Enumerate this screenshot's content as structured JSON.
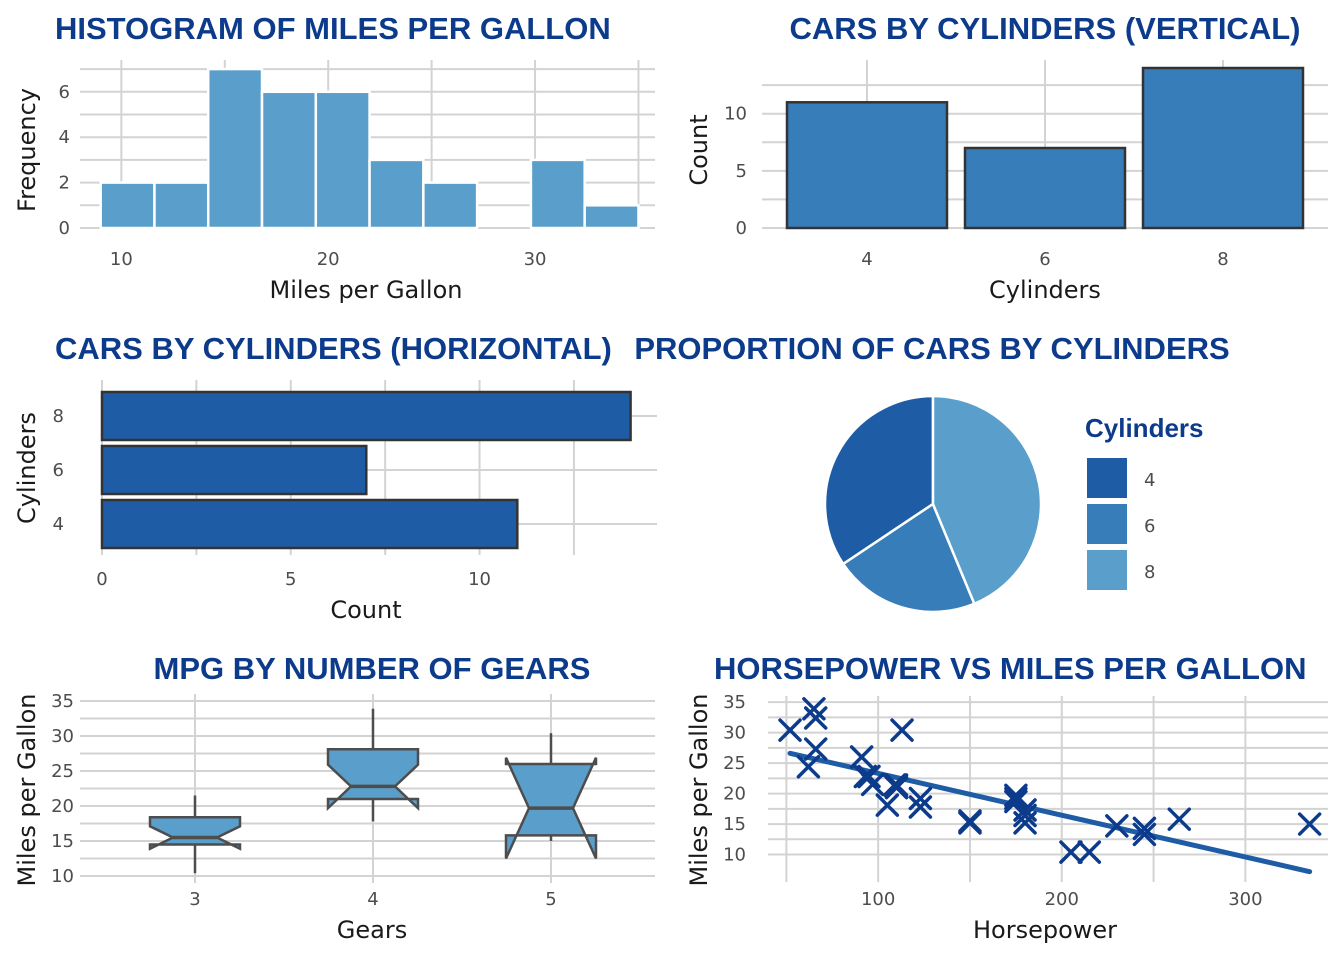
{
  "chart_data": [
    {
      "type": "bar",
      "subtype": "histogram",
      "title": "HISTOGRAM OF MILES PER GALLON",
      "xlabel": "Miles per Gallon",
      "ylabel": "Frequency",
      "bins": [
        [
          9.0,
          11.6
        ],
        [
          11.6,
          14.2
        ],
        [
          14.2,
          16.8
        ],
        [
          16.8,
          19.4
        ],
        [
          19.4,
          22.0
        ],
        [
          22.0,
          24.6
        ],
        [
          24.6,
          27.2
        ],
        [
          27.2,
          29.8
        ],
        [
          29.8,
          32.4
        ],
        [
          32.4,
          35.0
        ]
      ],
      "values": [
        2,
        2,
        7,
        6,
        6,
        3,
        2,
        0,
        3,
        1
      ],
      "xlim": [
        8.0,
        35.8
      ],
      "ylim": [
        0,
        7.4
      ],
      "xticks": [
        10,
        20,
        30
      ],
      "yticks": [
        0,
        2,
        4,
        6
      ],
      "color": "#5a9fcc"
    },
    {
      "type": "bar",
      "title": "CARS BY CYLINDERS (VERTICAL)",
      "xlabel": "Cylinders",
      "ylabel": "Count",
      "categories": [
        "4",
        "6",
        "8"
      ],
      "values": [
        11,
        7,
        14
      ],
      "ylim": [
        0,
        14.7
      ],
      "yticks": [
        0,
        5,
        10
      ],
      "color": "#377dba",
      "edge_color": "#333333"
    },
    {
      "type": "bar",
      "orientation": "horizontal",
      "title": "CARS BY CYLINDERS (HORIZONTAL)",
      "xlabel": "Count",
      "ylabel": "Cylinders",
      "categories": [
        "4",
        "6",
        "8"
      ],
      "values": [
        11,
        7,
        14
      ],
      "xlim": [
        0,
        14.7
      ],
      "xticks": [
        0,
        5,
        10
      ],
      "color": "#1f5ca6",
      "edge_color": "#333333"
    },
    {
      "type": "pie",
      "title": "PROPORTION OF CARS BY CYLINDERS",
      "legend_title": "Cylinders",
      "legend_position": "right",
      "categories": [
        "4",
        "6",
        "8"
      ],
      "values": [
        11,
        7,
        14
      ],
      "colors": [
        "#1f5ca6",
        "#377dba",
        "#5a9fcc"
      ]
    },
    {
      "type": "box",
      "title": "MPG BY NUMBER OF GEARS",
      "xlabel": "Gears",
      "ylabel": "Miles per Gallon",
      "categories": [
        "3",
        "4",
        "5"
      ],
      "stats": [
        {
          "min": 10.4,
          "q1": 14.5,
          "median": 15.5,
          "q3": 18.4,
          "max": 21.5,
          "notch_lo": 13.9,
          "notch_hi": 17.1
        },
        {
          "min": 17.8,
          "q1": 21.0,
          "median": 22.8,
          "q3": 28.1,
          "max": 33.9,
          "notch_lo": 19.7,
          "notch_hi": 25.9
        },
        {
          "min": 15.0,
          "q1": 15.8,
          "median": 19.7,
          "q3": 26.0,
          "max": 30.4,
          "notch_lo": 12.5,
          "notch_hi": 26.9
        }
      ],
      "ylim": [
        9.0,
        36.0
      ],
      "yticks": [
        10,
        15,
        20,
        25,
        30,
        35
      ],
      "color": "#5a9fcc"
    },
    {
      "type": "scatter",
      "title": "HORSEPOWER VS MILES PER GALLON",
      "xlabel": "Horsepower",
      "ylabel": "Miles per Gallon",
      "marker": "x",
      "points": [
        [
          110,
          21.0
        ],
        [
          110,
          21.0
        ],
        [
          93,
          22.8
        ],
        [
          110,
          21.4
        ],
        [
          175,
          18.7
        ],
        [
          105,
          18.1
        ],
        [
          245,
          14.3
        ],
        [
          62,
          24.4
        ],
        [
          95,
          22.8
        ],
        [
          123,
          19.2
        ],
        [
          123,
          17.8
        ],
        [
          180,
          16.4
        ],
        [
          180,
          17.3
        ],
        [
          180,
          15.2
        ],
        [
          205,
          10.4
        ],
        [
          215,
          10.4
        ],
        [
          230,
          14.7
        ],
        [
          66,
          32.4
        ],
        [
          52,
          30.4
        ],
        [
          65,
          33.9
        ],
        [
          97,
          21.5
        ],
        [
          150,
          15.5
        ],
        [
          150,
          15.2
        ],
        [
          245,
          13.3
        ],
        [
          175,
          19.2
        ],
        [
          66,
          27.3
        ],
        [
          91,
          26.0
        ],
        [
          113,
          30.4
        ],
        [
          264,
          15.8
        ],
        [
          175,
          19.7
        ],
        [
          335,
          15.0
        ],
        [
          109,
          21.4
        ]
      ],
      "trendline": {
        "x": [
          52,
          335
        ],
        "y": [
          26.6,
          7.2
        ]
      },
      "xlim": [
        40,
        345
      ],
      "ylim": [
        5.5,
        36.0
      ],
      "xticks": [
        100,
        200,
        300
      ],
      "yticks": [
        10,
        15,
        20,
        25,
        30,
        35
      ],
      "color": "#0d3b8c",
      "trend_color": "#1f5ca6"
    }
  ]
}
